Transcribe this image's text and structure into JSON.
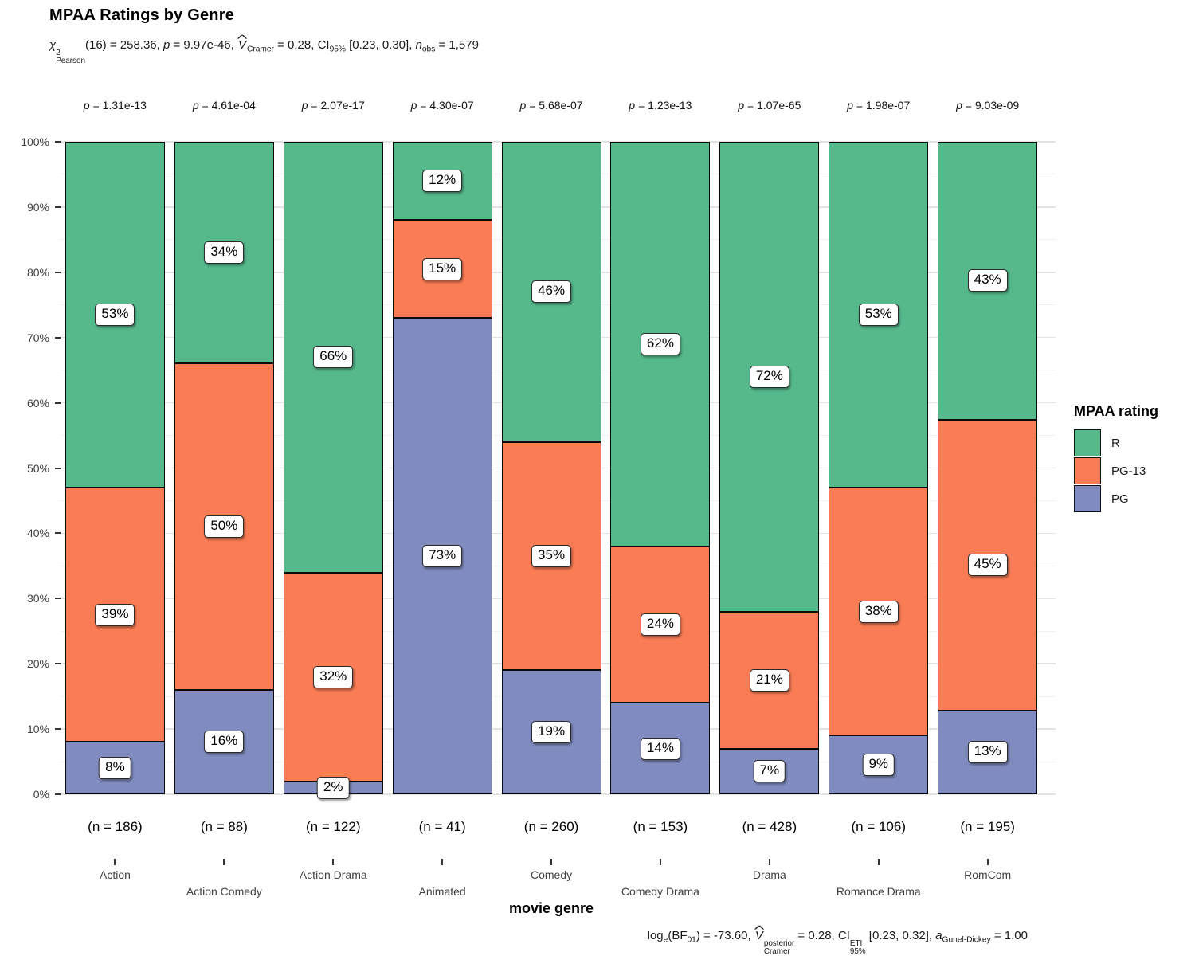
{
  "title": "MPAA Ratings by Genre",
  "subtitle_tokens": [
    {
      "k": "i",
      "t": "χ"
    },
    {
      "k": "ss",
      "sup": "2",
      "sub": "Pearson"
    },
    {
      "k": "n",
      "t": "(16) = 258.36, "
    },
    {
      "k": "i",
      "t": "p"
    },
    {
      "k": "n",
      "t": " = 9.97e-46, "
    },
    {
      "k": "ihat",
      "t": "V"
    },
    {
      "k": "sub",
      "t": "Cramer"
    },
    {
      "k": "n",
      "t": " = 0.28, CI"
    },
    {
      "k": "sub",
      "t": "95%"
    },
    {
      "k": "n",
      "t": " [0.23, 0.30], "
    },
    {
      "k": "i",
      "t": "n"
    },
    {
      "k": "sub",
      "t": "obs"
    },
    {
      "k": "n",
      "t": " = 1,579"
    }
  ],
  "caption_tokens": [
    {
      "k": "n",
      "t": "log"
    },
    {
      "k": "sub",
      "t": "e"
    },
    {
      "k": "n",
      "t": "(BF"
    },
    {
      "k": "sub",
      "t": "01"
    },
    {
      "k": "n",
      "t": ") = -73.60, "
    },
    {
      "k": "ihat",
      "t": "V"
    },
    {
      "k": "ss",
      "sup": "posterior",
      "sub": "Cramer"
    },
    {
      "k": "n",
      "t": " = 0.28, CI"
    },
    {
      "k": "ss",
      "sup": "ETI",
      "sub": "95%"
    },
    {
      "k": "n",
      "t": " [0.23, 0.32], "
    },
    {
      "k": "i",
      "t": "a"
    },
    {
      "k": "sub",
      "t": "Gunel-Dickey"
    },
    {
      "k": "n",
      "t": " = 1.00"
    }
  ],
  "chart_data": {
    "type": "bar",
    "variant": "stacked-percent",
    "title": "MPAA Ratings by Genre",
    "xlabel": "movie genre",
    "legend_title": "MPAA rating",
    "legend_position": "right",
    "categories": [
      "Action",
      "Action Comedy",
      "Action Drama",
      "Animated",
      "Comedy",
      "Comedy Drama",
      "Drama",
      "Romance Drama",
      "RomCom"
    ],
    "sample_sizes": [
      "(n = 186)",
      "(n = 88)",
      "(n = 122)",
      "(n = 41)",
      "(n = 260)",
      "(n = 153)",
      "(n = 428)",
      "(n = 106)",
      "(n = 195)"
    ],
    "bar_p_values": [
      "p = 1.31e-13",
      "p = 4.61e-04",
      "p = 2.07e-17",
      "p = 4.30e-07",
      "p = 5.68e-07",
      "p = 1.23e-13",
      "p = 1.07e-65",
      "p = 1.98e-07",
      "p = 9.03e-09"
    ],
    "series": [
      {
        "name": "R",
        "color": "#55b98c",
        "values": [
          53,
          34,
          66,
          12,
          46,
          62,
          72,
          53,
          43
        ]
      },
      {
        "name": "PG-13",
        "color": "#f97c54",
        "values": [
          39,
          50,
          32,
          15,
          35,
          24,
          21,
          38,
          45
        ]
      },
      {
        "name": "PG",
        "color": "#808cc0",
        "values": [
          8,
          16,
          2,
          73,
          19,
          14,
          7,
          9,
          13
        ]
      }
    ],
    "stack_order_bottom_to_top": [
      "PG",
      "PG-13",
      "R"
    ],
    "value_suffix": "%",
    "y_axis": {
      "range": [
        0,
        100
      ],
      "ticks": [
        0,
        10,
        20,
        30,
        40,
        50,
        60,
        70,
        80,
        90,
        100
      ],
      "tick_labels": [
        "0%",
        "10%",
        "20%",
        "30%",
        "40%",
        "50%",
        "60%",
        "70%",
        "80%",
        "90%",
        "100%"
      ],
      "minor_ticks": [
        5,
        15,
        25,
        35,
        45,
        55,
        65,
        75,
        85,
        95
      ],
      "grid": true
    },
    "colors": {
      "grid_major": "#e3e3e3",
      "grid_minor": "#f1f1f1",
      "axis_text": "#404040",
      "bar_border": "#0a0a0a"
    }
  }
}
